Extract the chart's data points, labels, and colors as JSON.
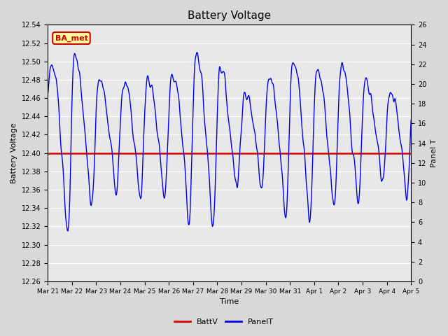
{
  "title": "Battery Voltage",
  "xlabel": "Time",
  "ylabel_left": "Battery Voltage",
  "ylabel_right": "Panel T",
  "annotation_text": "BA_met",
  "annotation_bg": "#ffffa0",
  "annotation_border": "#cc0000",
  "annotation_text_color": "#cc0000",
  "ylim_left": [
    12.26,
    12.54
  ],
  "ylim_right": [
    0,
    26
  ],
  "yticks_left": [
    12.26,
    12.28,
    12.3,
    12.32,
    12.34,
    12.36,
    12.38,
    12.4,
    12.42,
    12.44,
    12.46,
    12.48,
    12.5,
    12.52,
    12.54
  ],
  "yticks_right": [
    0,
    2,
    4,
    6,
    8,
    10,
    12,
    14,
    16,
    18,
    20,
    22,
    24,
    26
  ],
  "xtick_labels": [
    "Mar 21",
    "Mar 22",
    "Mar 23",
    "Mar 24",
    "Mar 25",
    "Mar 26",
    "Mar 27",
    "Mar 28",
    "Mar 29",
    "Mar 30",
    "Mar 31",
    "Apr 1",
    "Apr 2",
    "Apr 3",
    "Apr 4",
    "Apr 5"
  ],
  "batt_v_value": 12.4,
  "batt_color": "#dd0000",
  "panel_color": "#0000ee",
  "bg_color": "#d8d8d8",
  "plot_bg_color": "#e8e8e8",
  "grid_color": "#ffffff",
  "legend_batt_label": "BattV",
  "legend_panel_label": "PanelT",
  "figsize": [
    6.4,
    4.8
  ],
  "dpi": 100
}
